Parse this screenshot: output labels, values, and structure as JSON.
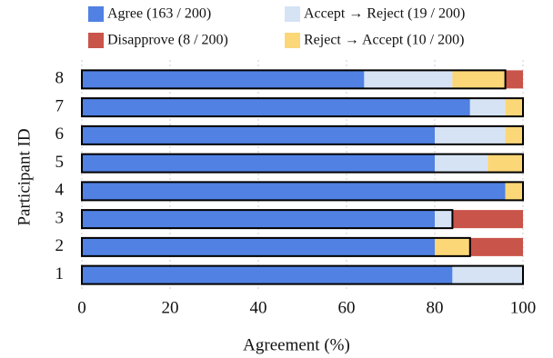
{
  "chart_data": {
    "type": "stacked-bar-horizontal",
    "categories": [
      "1",
      "2",
      "3",
      "4",
      "5",
      "6",
      "7",
      "8"
    ],
    "series": [
      {
        "name": "Agree (163 / 200)",
        "color": "#5081e3",
        "values": [
          84,
          80,
          80,
          96,
          80,
          80,
          88,
          64
        ]
      },
      {
        "name": "Accept → Reject (19 / 200)",
        "color": "#d5e3f5",
        "values": [
          16,
          0,
          4,
          0,
          12,
          16,
          8,
          20
        ]
      },
      {
        "name": "Disapprove (8 / 200)",
        "color": "#c9544a",
        "values": [
          0,
          12,
          16,
          0,
          0,
          0,
          0,
          4
        ]
      },
      {
        "name": "Reject → Accept (10 / 200)",
        "color": "#fcd778",
        "values": [
          0,
          8,
          0,
          4,
          8,
          4,
          4,
          12
        ]
      }
    ],
    "xlabel": "Agreement (%)",
    "ylabel": "Participant ID",
    "xlim": [
      0,
      100
    ],
    "xticks": [
      0,
      20,
      40,
      60,
      80,
      100
    ],
    "grid": true
  }
}
